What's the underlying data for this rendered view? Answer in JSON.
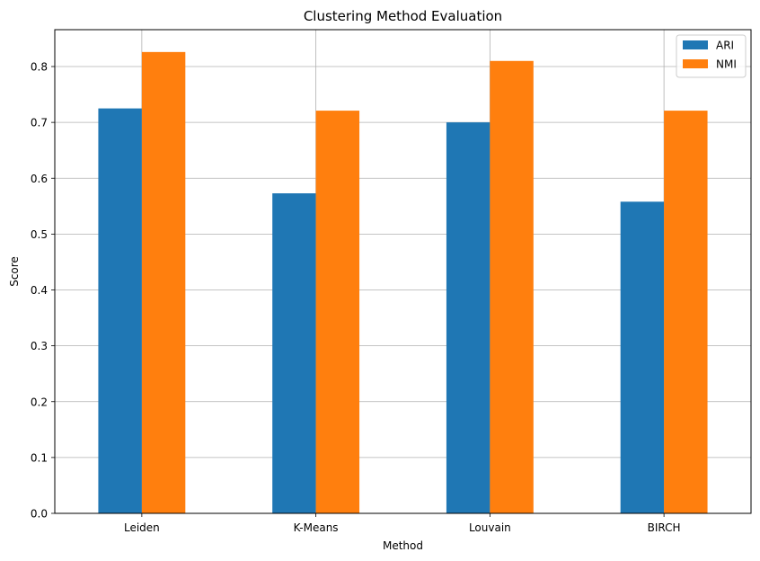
{
  "chart_data": {
    "type": "bar",
    "title": "Clustering Method Evaluation",
    "xlabel": "Method",
    "ylabel": "Score",
    "categories": [
      "Leiden",
      "K-Means",
      "Louvain",
      "BIRCH"
    ],
    "series": [
      {
        "name": "ARI",
        "values": [
          0.725,
          0.573,
          0.7,
          0.558
        ],
        "color": "#1f77b4"
      },
      {
        "name": "NMI",
        "values": [
          0.826,
          0.721,
          0.81,
          0.721
        ],
        "color": "#ff7f0e"
      }
    ],
    "ylim": [
      0,
      0.866
    ],
    "yticks": [
      "0.0",
      "0.1",
      "0.2",
      "0.3",
      "0.4",
      "0.5",
      "0.6",
      "0.7",
      "0.8"
    ],
    "grid": true,
    "legend_position": "top-right"
  }
}
